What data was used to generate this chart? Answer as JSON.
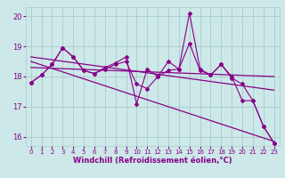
{
  "background_color": "#cce8e8",
  "grid_color": "#aacccc",
  "line_color": "#880088",
  "spine_color": "#9966aa",
  "xlim": [
    -0.5,
    23.5
  ],
  "ylim": [
    15.7,
    20.3
  ],
  "yticks": [
    16,
    17,
    18,
    19,
    20
  ],
  "xticks": [
    0,
    1,
    2,
    3,
    4,
    5,
    6,
    7,
    8,
    9,
    10,
    11,
    12,
    13,
    14,
    15,
    16,
    17,
    18,
    19,
    20,
    21,
    22,
    23
  ],
  "xlabel": "Windchill (Refroidissement éolien,°C)",
  "series_main": [
    17.8,
    18.05,
    18.4,
    18.95,
    18.65,
    18.2,
    18.1,
    18.3,
    18.45,
    18.65,
    17.1,
    18.25,
    18.0,
    18.5,
    18.25,
    20.1,
    18.25,
    18.05,
    18.4,
    18.0,
    17.2,
    17.2,
    16.35,
    15.8
  ],
  "series2": [
    17.8,
    18.05,
    18.4,
    18.95,
    18.65,
    18.2,
    18.1,
    18.25,
    18.4,
    18.5,
    17.75,
    17.6,
    18.0,
    18.2,
    18.25,
    19.1,
    18.2,
    18.05,
    18.4,
    17.95,
    17.75,
    17.2,
    16.35,
    15.8
  ],
  "trend_flat_start": 18.3,
  "trend_flat_end": 18.0,
  "trend_mid_start": 18.65,
  "trend_mid_end": 17.55,
  "trend_steep_start": 18.5,
  "trend_steep_end": 15.85,
  "trend_x_start": 0,
  "trend_x_end": 23
}
